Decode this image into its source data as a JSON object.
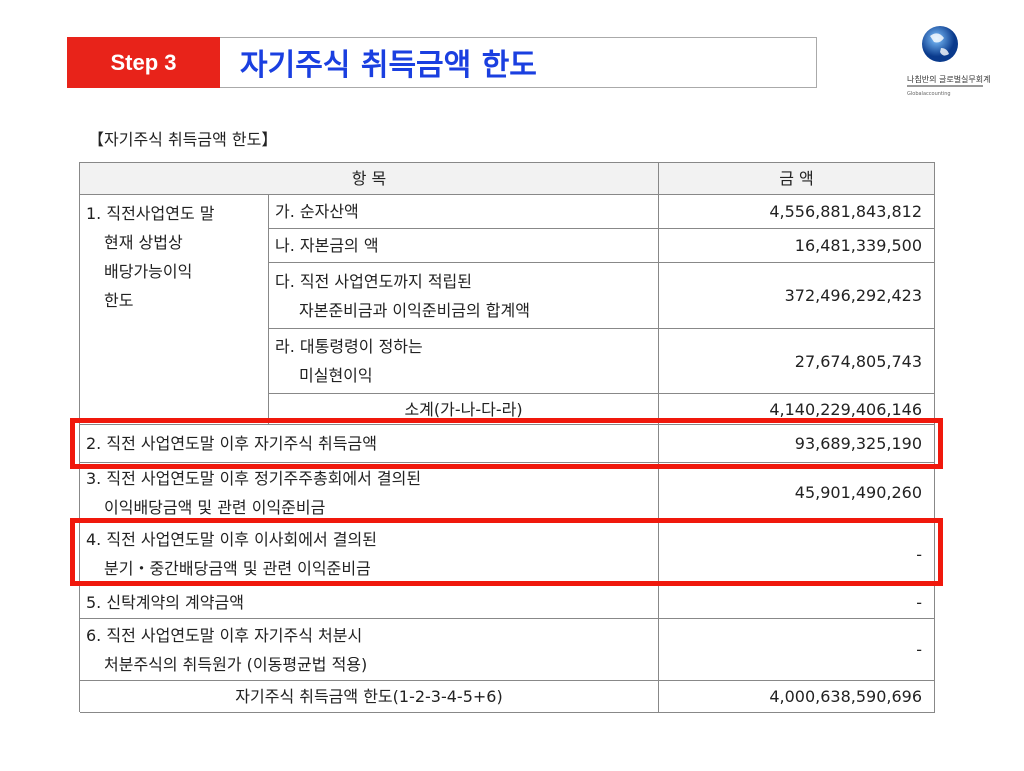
{
  "header": {
    "step": "Step 3",
    "title": "자기주식 취득금액 한도"
  },
  "logo": {
    "name": "나침반의 글로벌실무회계",
    "tagline": "Globalaccounting"
  },
  "caption": "【자기주식 취득금액 한도】",
  "table": {
    "columns": [
      "항 목",
      "금 액"
    ],
    "group": {
      "label": [
        "1. 직전사업연도 말",
        "현재 상법상",
        "배당가능이익",
        "한도"
      ],
      "items": [
        {
          "label": [
            "가. 순자산액"
          ],
          "amount": "4,556,881,843,812"
        },
        {
          "label": [
            "나. 자본금의 액"
          ],
          "amount": "16,481,339,500"
        },
        {
          "label": [
            "다. 직전 사업연도까지 적립된",
            "자본준비금과 이익준비금의 합계액"
          ],
          "amount": "372,496,292,423"
        },
        {
          "label": [
            "라. 대통령령이 정하는",
            "미실현이익"
          ],
          "amount": "27,674,805,743"
        }
      ],
      "subtotal": {
        "label": "소계(가-나-다-라)",
        "amount": "4,140,229,406,146"
      }
    },
    "rows": [
      {
        "label": [
          "2. 직전 사업연도말 이후 자기주식 취득금액"
        ],
        "amount": "93,689,325,190"
      },
      {
        "label": [
          "3. 직전 사업연도말 이후 정기주주총회에서 결의된",
          "이익배당금액 및 관련 이익준비금"
        ],
        "amount": "45,901,490,260"
      },
      {
        "label": [
          "4. 직전 사업연도말 이후 이사회에서 결의된",
          "분기・중간배당금액 및 관련 이익준비금"
        ],
        "amount": "-"
      },
      {
        "label": [
          "5. 신탁계약의 계약금액"
        ],
        "amount": "-"
      },
      {
        "label": [
          "6. 직전 사업연도말 이후 자기주식 처분시",
          "처분주식의 취득원가 (이동평균법 적용)"
        ],
        "amount": "-"
      }
    ],
    "total": {
      "label": "자기주식 취득금액 한도(1-2-3-4-5+6)",
      "amount": "4,000,638,590,696"
    }
  }
}
